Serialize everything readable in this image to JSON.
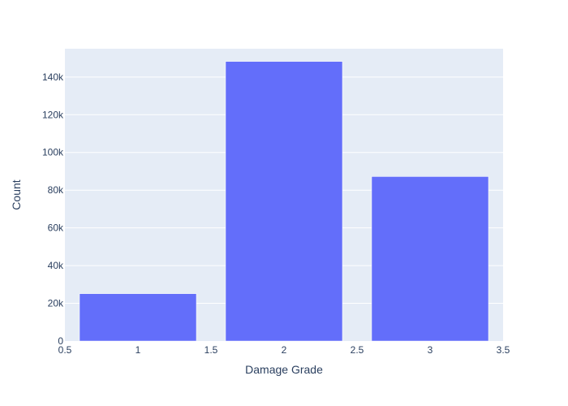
{
  "chart_data": {
    "type": "bar",
    "title": "",
    "xlabel": "Damage Grade",
    "ylabel": "Count",
    "x": [
      1,
      2,
      3
    ],
    "values": [
      25124,
      148259,
      87218
    ],
    "bar_width": 0.8,
    "xlim": [
      0.5,
      3.5
    ],
    "ylim": [
      0,
      155000
    ],
    "x_ticks": [
      0.5,
      1,
      1.5,
      2,
      2.5,
      3,
      3.5
    ],
    "x_tick_labels": [
      "0.5",
      "1",
      "1.5",
      "2",
      "2.5",
      "3",
      "3.5"
    ],
    "y_ticks": [
      0,
      20000,
      40000,
      60000,
      80000,
      100000,
      120000,
      140000
    ],
    "y_tick_labels": [
      "0",
      "20k",
      "40k",
      "60k",
      "80k",
      "100k",
      "120k",
      "140k"
    ],
    "grid": true,
    "colors": {
      "bar": "#636efa",
      "plot_bg": "#e5ecf6",
      "grid": "#ffffff",
      "text": "#2a3f5f"
    }
  }
}
